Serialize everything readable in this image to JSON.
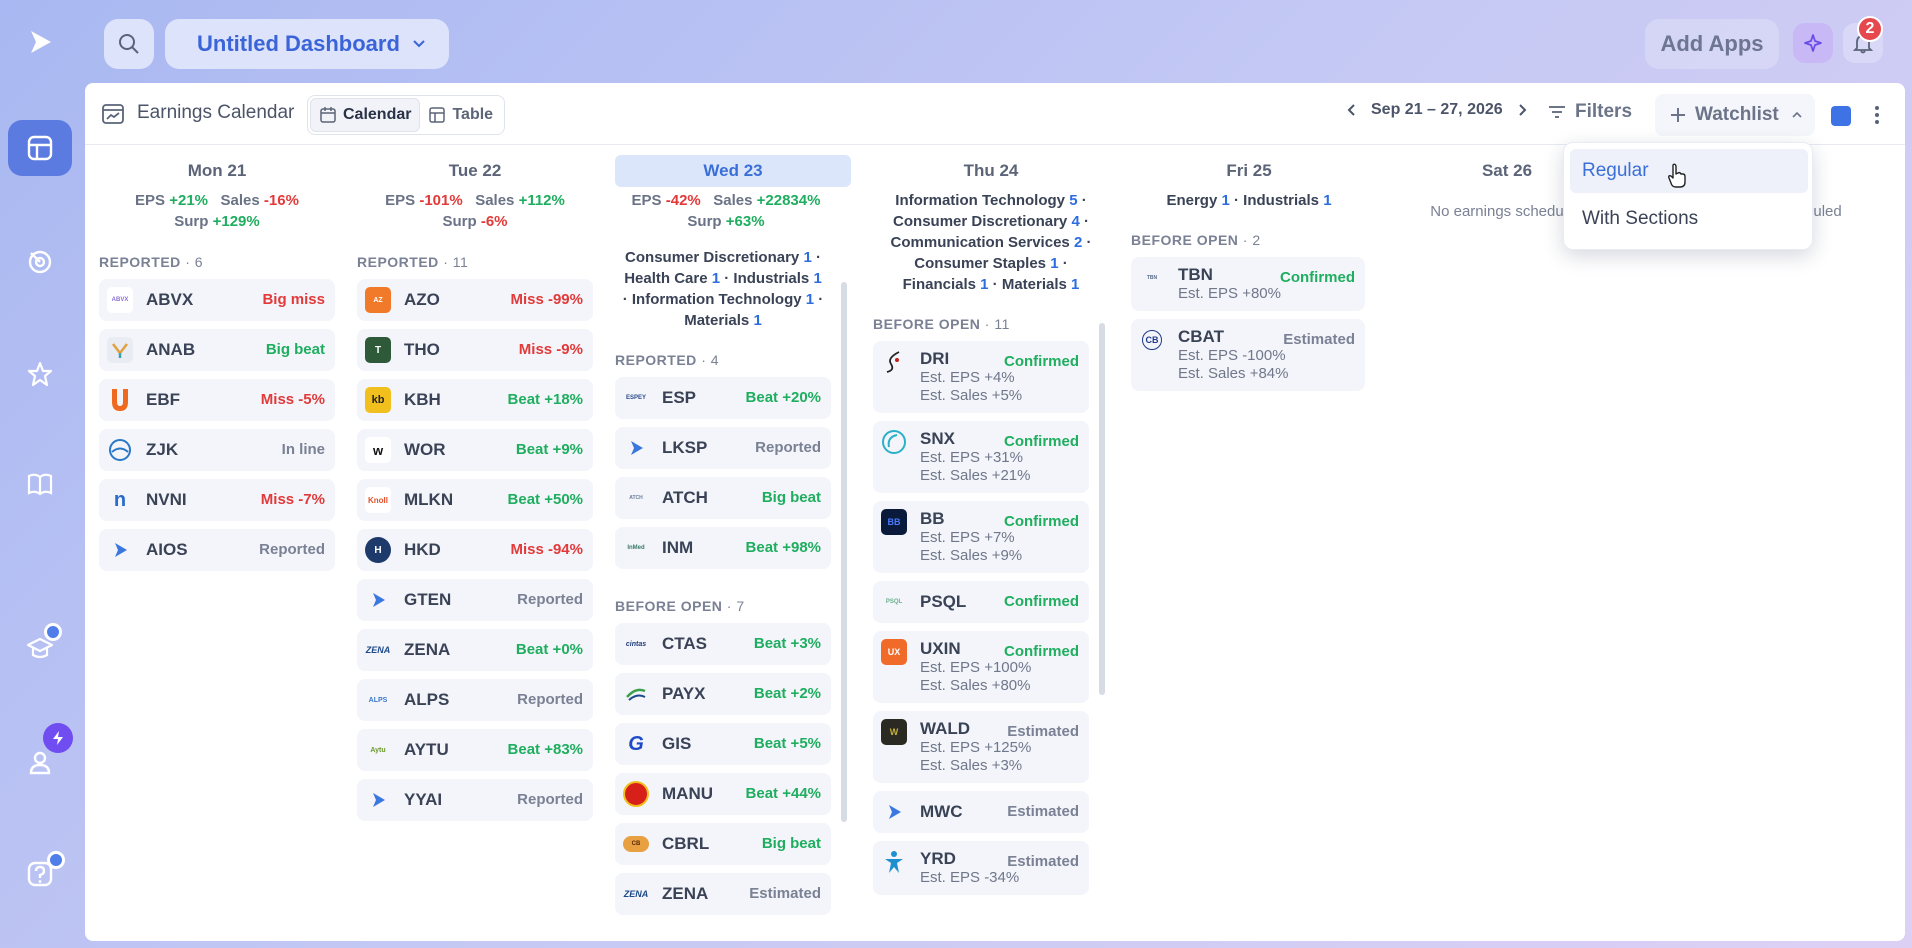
{
  "rail": {
    "items": [
      "logo-icon",
      "dashboard-icon",
      "radar-icon",
      "star-icon",
      "book-icon",
      "learn-icon",
      "user-icon",
      "help-icon"
    ]
  },
  "topbar": {
    "dashboard_title": "Untitled Dashboard",
    "add_apps_label": "Add Apps",
    "notification_count": "2"
  },
  "widget": {
    "title": "Earnings Calendar",
    "view_calendar": "Calendar",
    "view_table": "Table",
    "date_range": "Sep 21 – 27, 2026",
    "filters_label": "Filters",
    "watchlist_label": "Watchlist",
    "watchlist_color": "#3d73e5",
    "dropdown": [
      "Regular",
      "With Sections"
    ]
  },
  "days": {
    "mon": {
      "label": "Mon 21",
      "eps": "+21%",
      "sales": "-16%",
      "surp": "+129%",
      "reported_label": "REPORTED",
      "reported_count": "6",
      "items": [
        {
          "sym": "ABVX",
          "res": "Big miss"
        },
        {
          "sym": "ANAB",
          "res": "Big beat"
        },
        {
          "sym": "EBF",
          "res": "Miss -5%"
        },
        {
          "sym": "ZJK",
          "res": "In line"
        },
        {
          "sym": "NVNI",
          "res": "Miss -7%"
        },
        {
          "sym": "AIOS",
          "res": "Reported"
        }
      ]
    },
    "tue": {
      "label": "Tue 22",
      "eps": "-101%",
      "sales": "+112%",
      "surp": "-6%",
      "reported_label": "REPORTED",
      "reported_count": "11",
      "items": [
        {
          "sym": "AZO",
          "res": "Miss -99%"
        },
        {
          "sym": "THO",
          "res": "Miss -9%"
        },
        {
          "sym": "KBH",
          "res": "Beat +18%"
        },
        {
          "sym": "WOR",
          "res": "Beat +9%"
        },
        {
          "sym": "MLKN",
          "res": "Beat +50%"
        },
        {
          "sym": "HKD",
          "res": "Miss -94%"
        },
        {
          "sym": "GTEN",
          "res": "Reported"
        },
        {
          "sym": "ZENA",
          "res": "Beat +0%"
        },
        {
          "sym": "ALPS",
          "res": "Reported"
        },
        {
          "sym": "AYTU",
          "res": "Beat +83%"
        },
        {
          "sym": "YYAI",
          "res": "Reported"
        }
      ]
    },
    "wed": {
      "label": "Wed 23",
      "eps": "-42%",
      "sales": "+22834%",
      "surp": "+63%",
      "sectors": [
        {
          "name": "Consumer Discretionary",
          "n": "1"
        },
        {
          "name": "Health Care",
          "n": "1"
        },
        {
          "name": "Industrials",
          "n": "1"
        },
        {
          "name": "Information Technology",
          "n": "1"
        },
        {
          "name": "Materials",
          "n": "1"
        }
      ],
      "reported_label": "REPORTED",
      "reported_count": "4",
      "reported": [
        {
          "sym": "ESP",
          "res": "Beat +20%"
        },
        {
          "sym": "LKSP",
          "res": "Reported"
        },
        {
          "sym": "ATCH",
          "res": "Big beat"
        },
        {
          "sym": "INM",
          "res": "Beat +98%"
        }
      ],
      "before_label": "BEFORE OPEN",
      "before_count": "7",
      "before": [
        {
          "sym": "CTAS",
          "res": "Beat +3%"
        },
        {
          "sym": "PAYX",
          "res": "Beat +2%"
        },
        {
          "sym": "GIS",
          "res": "Beat +5%"
        },
        {
          "sym": "MANU",
          "res": "Beat +44%"
        },
        {
          "sym": "CBRL",
          "res": "Big beat"
        },
        {
          "sym": "ZENA",
          "res": "Estimated"
        }
      ]
    },
    "thu": {
      "label": "Thu 24",
      "sectors": [
        {
          "name": "Information Technology",
          "n": "5"
        },
        {
          "name": "Consumer Discretionary",
          "n": "4"
        },
        {
          "name": "Communication Services",
          "n": "2"
        },
        {
          "name": "Consumer Staples",
          "n": "1"
        },
        {
          "name": "Financials",
          "n": "1"
        },
        {
          "name": "Materials",
          "n": "1"
        }
      ],
      "before_label": "BEFORE OPEN",
      "before_count": "11",
      "items": [
        {
          "sym": "DRI",
          "res": "Confirmed",
          "eps": "Est. EPS +4%",
          "sales": "Est. Sales +5%"
        },
        {
          "sym": "SNX",
          "res": "Confirmed",
          "eps": "Est. EPS +31%",
          "sales": "Est. Sales +21%"
        },
        {
          "sym": "BB",
          "res": "Confirmed",
          "eps": "Est. EPS +7%",
          "sales": "Est. Sales +9%"
        },
        {
          "sym": "PSQL",
          "res": "Confirmed"
        },
        {
          "sym": "UXIN",
          "res": "Confirmed",
          "eps": "Est. EPS +100%",
          "sales": "Est. Sales +80%"
        },
        {
          "sym": "WALD",
          "res": "Estimated",
          "eps": "Est. EPS +125%",
          "sales": "Est. Sales +3%"
        },
        {
          "sym": "MWC",
          "res": "Estimated"
        },
        {
          "sym": "YRD",
          "res": "Estimated",
          "eps": "Est. EPS -34%"
        }
      ]
    },
    "fri": {
      "label": "Fri 25",
      "sectors": [
        {
          "name": "Energy",
          "n": "1"
        },
        {
          "name": "Industrials",
          "n": "1"
        }
      ],
      "before_label": "BEFORE OPEN",
      "before_count": "2",
      "items": [
        {
          "sym": "TBN",
          "res": "Confirmed",
          "eps": "Est. EPS +80%"
        },
        {
          "sym": "CBAT",
          "res": "Estimated",
          "eps": "Est. EPS -100%",
          "sales": "Est. Sales +84%"
        }
      ]
    },
    "sat": {
      "label": "Sat 26",
      "empty": "No earnings scheduled"
    },
    "sun": {
      "empty": "No earnings scheduled"
    }
  }
}
